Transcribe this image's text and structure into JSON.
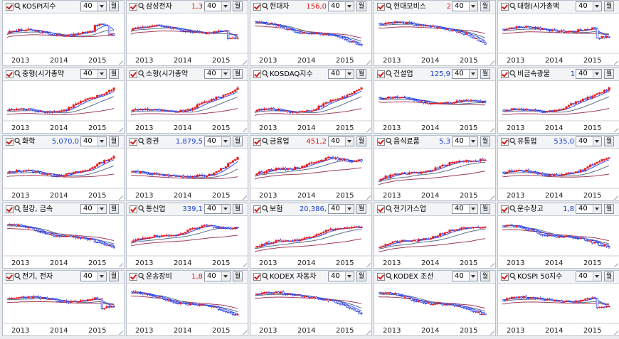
{
  "period_label": "월",
  "year_labels": [
    "2013",
    "2014",
    "2015"
  ],
  "colors": {
    "up": "#e81c1c",
    "down": "#1c2fe0",
    "ma_short": "#e02020",
    "ma_mid": "#3050ff",
    "ma_long": "#5a6d8a",
    "ma_xlong": "#a03a5a",
    "price_up": "#e01515",
    "price_down": "#1a3fd9"
  },
  "icons": {
    "checkbox": "checkbox-icon",
    "search": "magnifier-icon",
    "dropdown": "chevron-down-icon"
  },
  "panels": [
    {
      "name": "KOSPI지수",
      "price": "",
      "dir": "down",
      "count": "40",
      "trend": "flat-up-dip"
    },
    {
      "name": "삼성전자",
      "price": "1,3",
      "dir": "up",
      "count": "40",
      "trend": "flat-down-dip"
    },
    {
      "name": "현대차",
      "price": "156,0",
      "dir": "up",
      "count": "40",
      "trend": "fall"
    },
    {
      "name": "현대모비스",
      "price": "2",
      "dir": "up",
      "count": "40",
      "trend": "fall-late"
    },
    {
      "name": "대형(시가총액",
      "price": "",
      "dir": "down",
      "count": "40",
      "trend": "flat-dip"
    },
    {
      "name": "중형(시가총약",
      "price": "",
      "dir": "down",
      "count": "40",
      "trend": "rise-late"
    },
    {
      "name": "소형(시가총약",
      "price": "",
      "dir": "down",
      "count": "40",
      "trend": "rise-late"
    },
    {
      "name": "KOSDAQ지수",
      "price": "",
      "dir": "down",
      "count": "40",
      "trend": "rise-late"
    },
    {
      "name": "건설업",
      "price": "125,9",
      "dir": "down",
      "count": "40",
      "trend": "fall-flat"
    },
    {
      "name": "비금속광물",
      "price": "1",
      "dir": "down",
      "count": "40",
      "trend": "rise-late"
    },
    {
      "name": "화학",
      "price": "5,070,0",
      "dir": "down",
      "count": "40",
      "trend": "flat-rise"
    },
    {
      "name": "증권",
      "price": "1,879,5",
      "dir": "down",
      "count": "40",
      "trend": "dip-rise"
    },
    {
      "name": "금융업",
      "price": "451,2",
      "dir": "up",
      "count": "40",
      "trend": "rise-flat"
    },
    {
      "name": "음식료품",
      "price": "5,3",
      "dir": "down",
      "count": "40",
      "trend": "rise"
    },
    {
      "name": "유통업",
      "price": "535,0",
      "dir": "down",
      "count": "40",
      "trend": "flat-rise"
    },
    {
      "name": "철강, 금속",
      "price": "",
      "dir": "down",
      "count": "40",
      "trend": "fall"
    },
    {
      "name": "통신업",
      "price": "339,1",
      "dir": "down",
      "count": "40",
      "trend": "rise-flat"
    },
    {
      "name": "보험",
      "price": "20,386,",
      "dir": "down",
      "count": "40",
      "trend": "rise"
    },
    {
      "name": "전기가스업",
      "price": "",
      "dir": "down",
      "count": "40",
      "trend": "rise"
    },
    {
      "name": "운수창고",
      "price": "1,8",
      "dir": "down",
      "count": "40",
      "trend": "fall"
    },
    {
      "name": "전기, 전자",
      "price": "",
      "dir": "down",
      "count": "40",
      "trend": "flat-dip"
    },
    {
      "name": "운송장비",
      "price": "1,8",
      "dir": "up",
      "count": "40",
      "trend": "fall"
    },
    {
      "name": "KODEX 자동차",
      "price": "",
      "dir": "down",
      "count": "40",
      "trend": "fall-late"
    },
    {
      "name": "KODEX 조선",
      "price": "",
      "dir": "down",
      "count": "40",
      "trend": "fall"
    },
    {
      "name": "KOSPI 50지수",
      "price": "",
      "dir": "down",
      "count": "40",
      "trend": "flat-dip"
    }
  ]
}
